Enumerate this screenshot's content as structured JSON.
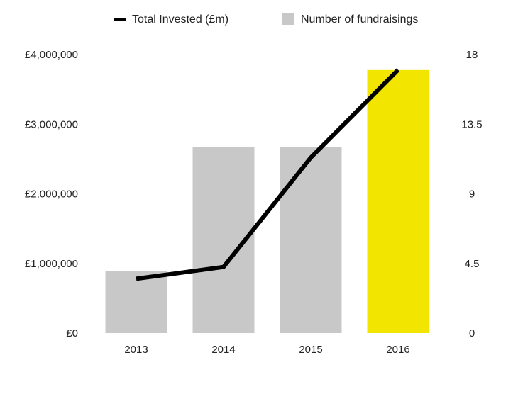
{
  "chart_data": {
    "type": "bar",
    "categories": [
      "2013",
      "2014",
      "2015",
      "2016"
    ],
    "series": [
      {
        "name": "Number of fundraisings",
        "type": "bar",
        "axis": "right",
        "values": [
          4,
          12,
          12,
          17
        ],
        "colors": [
          "#c8c8c8",
          "#c8c8c8",
          "#c8c8c8",
          "#f2e500"
        ]
      },
      {
        "name": "Total Invested (£m)",
        "type": "line",
        "axis": "left",
        "values": [
          780000,
          950000,
          2520000,
          3780000
        ],
        "color": "#000000"
      }
    ],
    "y_left": {
      "min": 0,
      "max": 4000000,
      "ticks": [
        "£0",
        "£1,000,000",
        "£2,000,000",
        "£3,000,000",
        "£4,000,000"
      ]
    },
    "y_right": {
      "min": 0,
      "max": 18,
      "ticks": [
        "0",
        "4.5",
        "9",
        "13.5",
        "18"
      ]
    },
    "legend": {
      "placement": "top",
      "items": [
        "Total Invested (£m)",
        "Number of fundraisings"
      ]
    },
    "grid": false
  }
}
